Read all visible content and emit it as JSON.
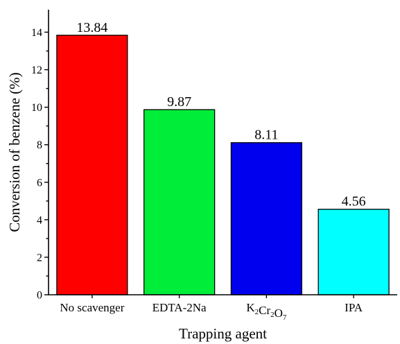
{
  "chart_data": {
    "type": "bar",
    "categories": [
      "No scavenger",
      "EDTA-2Na",
      "K2Cr2O7",
      "IPA"
    ],
    "category_labels": [
      {
        "parts": [
          {
            "t": "No scavenger",
            "sub": false
          }
        ]
      },
      {
        "parts": [
          {
            "t": "EDTA-2Na",
            "sub": false
          }
        ]
      },
      {
        "parts": [
          {
            "t": "K",
            "sub": false
          },
          {
            "t": "2",
            "sub": true
          },
          {
            "t": "Cr",
            "sub": false
          },
          {
            "t": "2",
            "sub": true
          },
          {
            "t": "O",
            "sub": false
          },
          {
            "t": "7",
            "sub": true
          }
        ]
      },
      {
        "parts": [
          {
            "t": "IPA",
            "sub": false
          }
        ]
      }
    ],
    "values": [
      13.84,
      9.87,
      8.11,
      4.56
    ],
    "data_labels": [
      "13.84",
      "9.87",
      "8.11",
      "4.56"
    ],
    "colors": [
      "#ff0000",
      "#00ee3a",
      "#0000ee",
      "#00ffff"
    ],
    "xlabel": "Trapping agent",
    "ylabel": "Conversion of benzene (%)",
    "ylim": [
      0,
      15.2
    ],
    "yticks": [
      0,
      2,
      4,
      6,
      8,
      10,
      12,
      14
    ],
    "yticks_minor": [
      1,
      3,
      5,
      7,
      9,
      11,
      13
    ],
    "grid": false,
    "legend": "none"
  }
}
